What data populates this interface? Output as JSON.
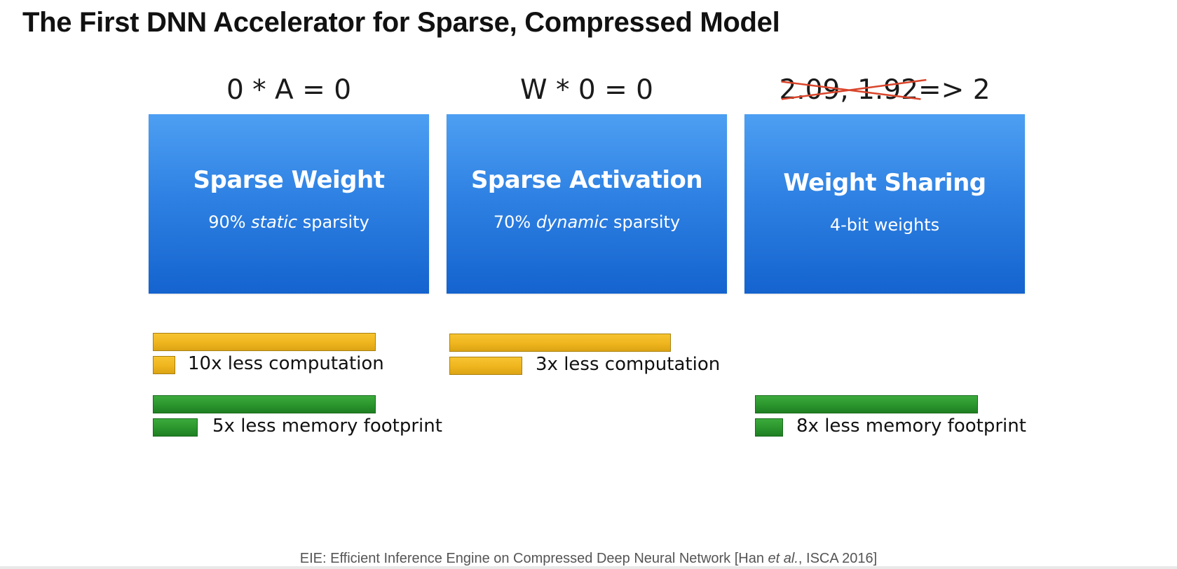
{
  "slide": {
    "title": "The First DNN Accelerator for Sparse, Compressed Model",
    "formulas": {
      "col1": "0 * A = 0",
      "col2": "W * 0 = 0",
      "col3_struck": "2.09, 1.92",
      "col3_rest": "=> 2"
    },
    "boxes": [
      {
        "title": "Sparse Weight",
        "sub_pre": "90% ",
        "sub_em": "static",
        "sub_post": " sparsity"
      },
      {
        "title": "Sparse Activation",
        "sub_pre": "70% ",
        "sub_em": "dynamic",
        "sub_post": " sparsity"
      },
      {
        "title": "Weight Sharing",
        "sub": "4-bit weights"
      }
    ],
    "metrics": {
      "col1_computation": "10x less computation",
      "col1_memory": "5x less memory footprint",
      "col2_computation": "3x less computation",
      "col3_memory": "8x less memory footprint"
    },
    "reductions": {
      "col1_computation_fraction": 0.1,
      "col1_memory_fraction": 0.2,
      "col2_computation_fraction": 0.33,
      "col3_memory_fraction": 0.125
    },
    "citation": {
      "pre": "EIE: Efficient Inference Engine on Compressed Deep Neural Network [Han ",
      "em": "et al.",
      "post": ", ISCA 2016]"
    },
    "colors": {
      "box_blue": "#2f82e3",
      "computation_bar": "#efb51e",
      "memory_bar": "#2a952c",
      "strike_red": "#d9442a"
    }
  }
}
